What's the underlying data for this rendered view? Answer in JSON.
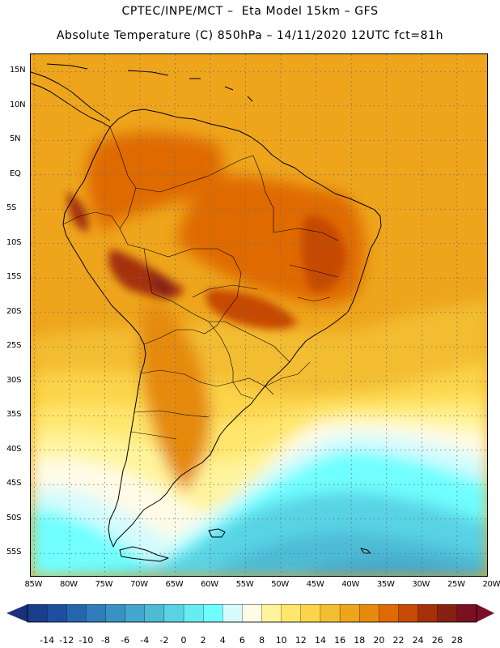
{
  "header": {
    "title_line1": "CPTEC/INPE/MCT –  Eta Model 15km – GFS",
    "title_line2": "Absolute Temperature (C) 850hPa – 14/11/2020 12UTC fct=81h"
  },
  "map": {
    "lat_labels": [
      "15N",
      "10N",
      "5N",
      "EQ",
      "5S",
      "10S",
      "15S",
      "20S",
      "25S",
      "30S",
      "35S",
      "40S",
      "45S",
      "50S",
      "55S"
    ],
    "lon_labels": [
      "85W",
      "80W",
      "75W",
      "70W",
      "65W",
      "60W",
      "55W",
      "50W",
      "45W",
      "40W",
      "35W",
      "30W",
      "25W",
      "20W"
    ],
    "lat_range": [
      17.5,
      -58.5
    ],
    "lon_range": [
      -85.5,
      -20.5
    ]
  },
  "colorbar": {
    "labels": [
      "-14",
      "-12",
      "-10",
      "-8",
      "-6",
      "-4",
      "-2",
      "0",
      "2",
      "4",
      "6",
      "8",
      "10",
      "12",
      "14",
      "16",
      "18",
      "20",
      "22",
      "24",
      "26",
      "28"
    ],
    "colors": [
      "#1a3e8c",
      "#1d4f9e",
      "#2466ad",
      "#2f7dbb",
      "#3a92c4",
      "#43a6cc",
      "#4dbbd6",
      "#59d3e4",
      "#66ecf2",
      "#6ffeff",
      "#d6fbfd",
      "#fffbe6",
      "#fff49c",
      "#ffe66c",
      "#fcd44a",
      "#f3bd32",
      "#eea51b",
      "#e58a0d",
      "#df6a05",
      "#c64a06",
      "#a5300a",
      "#862113",
      "#7a1020"
    ],
    "left_arrow_color": "#1b2f7a",
    "right_arrow_color": "#7a0d28"
  }
}
